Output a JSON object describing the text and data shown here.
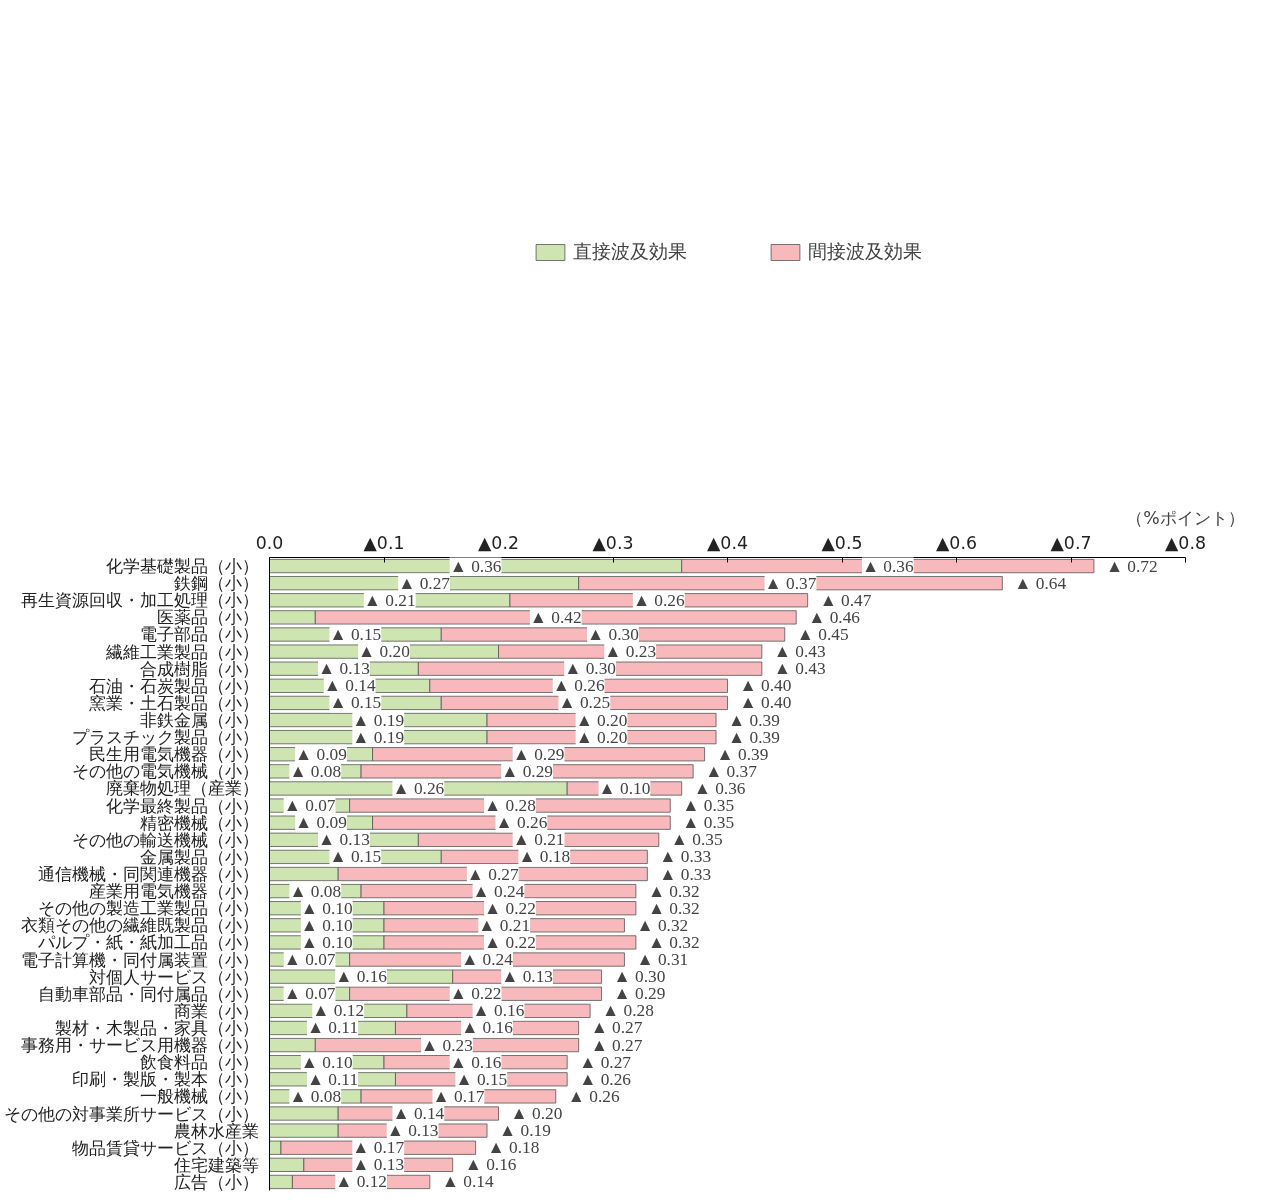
{
  "chart_data": {
    "type": "bar",
    "orientation": "horizontal",
    "stacked": true,
    "xlabel": "（%ポイント）",
    "legend": "top",
    "categories": [
      "化学基礎製品（小）",
      "鉄鋼（小）",
      "再生資源回収・加工処理（小）",
      "医薬品（小）",
      "電子部品（小）",
      "繊維工業製品（小）",
      "合成樹脂（小）",
      "石油・石炭製品（小）",
      "窯業・土石製品（小）",
      "非鉄金属（小）",
      "プラスチック製品（小）",
      "民生用電気機器（小）",
      "その他の電気機械（小）",
      "廃棄物処理（産業）",
      "化学最終製品（小）",
      "精密機械（小）",
      "その他の輸送機械（小）",
      "金属製品（小）",
      "通信機械・同関連機器（小）",
      "産業用電気機器（小）",
      "その他の製造工業製品（小）",
      "衣類その他の繊維既製品（小）",
      "パルプ・紙・紙加工品（小）",
      "電子計算機・同付属装置（小）",
      "対個人サービス（小）",
      "自動車部品・同付属品（小）",
      "商業（小）",
      "製材・木製品・家具（小）",
      "事務用・サービス用機器（小）",
      "飲食料品（小）",
      "印刷・製版・製本（小）",
      "一般機械（小）",
      "その他の対事業所サービス（小）",
      "農林水産業",
      "物品賃貸サービス（小）",
      "住宅建築等",
      "広告（小）"
    ],
    "xlim": [
      0,
      0.8
    ],
    "xticks": [
      {
        "value": 0,
        "label": "0.0"
      },
      {
        "value": 0.1,
        "label": "▲0.1"
      },
      {
        "value": 0.2,
        "label": "▲0.2"
      },
      {
        "value": 0.3,
        "label": "▲0.3"
      },
      {
        "value": 0.4,
        "label": "▲0.4"
      },
      {
        "value": 0.5,
        "label": "▲0.5"
      },
      {
        "value": 0.6,
        "label": "▲0.6"
      },
      {
        "value": 0.7,
        "label": "▲0.7"
      },
      {
        "value": 0.8,
        "label": "▲0.8"
      }
    ],
    "series": [
      {
        "name": "直接波及効果",
        "color": "#cfe5b1",
        "values": [
          0.36,
          0.27,
          0.21,
          0.04,
          0.15,
          0.2,
          0.13,
          0.14,
          0.15,
          0.19,
          0.19,
          0.09,
          0.08,
          0.26,
          0.07,
          0.09,
          0.13,
          0.15,
          0.06,
          0.08,
          0.1,
          0.1,
          0.1,
          0.07,
          0.16,
          0.07,
          0.12,
          0.11,
          0.04,
          0.1,
          0.11,
          0.08,
          0.06,
          0.06,
          0.01,
          0.03,
          0.02
        ],
        "value_labels": [
          "▲ 0.36",
          "▲ 0.27",
          "▲ 0.21",
          null,
          "▲ 0.15",
          "▲ 0.20",
          "▲ 0.13",
          "▲ 0.14",
          "▲ 0.15",
          "▲ 0.19",
          "▲ 0.19",
          "▲ 0.09",
          "▲ 0.08",
          "▲ 0.26",
          "▲ 0.07",
          "▲ 0.09",
          "▲ 0.13",
          "▲ 0.15",
          null,
          "▲ 0.08",
          "▲ 0.10",
          "▲ 0.10",
          "▲ 0.10",
          "▲ 0.07",
          "▲ 0.16",
          "▲ 0.07",
          "▲ 0.12",
          "▲ 0.11",
          null,
          "▲ 0.10",
          "▲ 0.11",
          "▲ 0.08",
          null,
          null,
          null,
          null,
          null
        ]
      },
      {
        "name": "間接波及効果",
        "color": "#f7b9bb",
        "values": [
          0.36,
          0.37,
          0.26,
          0.42,
          0.3,
          0.23,
          0.3,
          0.26,
          0.25,
          0.2,
          0.2,
          0.29,
          0.29,
          0.1,
          0.28,
          0.26,
          0.21,
          0.18,
          0.27,
          0.24,
          0.22,
          0.21,
          0.22,
          0.24,
          0.13,
          0.22,
          0.16,
          0.16,
          0.23,
          0.16,
          0.15,
          0.17,
          0.14,
          0.13,
          0.17,
          0.13,
          0.12
        ],
        "value_labels": [
          "▲ 0.36",
          "▲ 0.37",
          "▲ 0.26",
          "▲ 0.42",
          "▲ 0.30",
          "▲ 0.23",
          "▲ 0.30",
          "▲ 0.26",
          "▲ 0.25",
          "▲ 0.20",
          "▲ 0.20",
          "▲ 0.29",
          "▲ 0.29",
          "▲ 0.10",
          "▲ 0.28",
          "▲ 0.26",
          "▲ 0.21",
          "▲ 0.18",
          "▲ 0.27",
          "▲ 0.24",
          "▲ 0.22",
          "▲ 0.21",
          "▲ 0.22",
          "▲ 0.24",
          "▲ 0.13",
          "▲ 0.22",
          "▲ 0.16",
          "▲ 0.16",
          "▲ 0.23",
          "▲ 0.16",
          "▲ 0.15",
          "▲ 0.17",
          "▲ 0.14",
          "▲ 0.13",
          "▲ 0.17",
          "▲ 0.13",
          "▲ 0.12"
        ]
      }
    ],
    "totals": [
      "▲ 0.72",
      "▲ 0.64",
      "▲ 0.47",
      "▲ 0.46",
      "▲ 0.45",
      "▲ 0.43",
      "▲ 0.43",
      "▲ 0.40",
      "▲ 0.40",
      "▲ 0.39",
      "▲ 0.39",
      "▲ 0.39",
      "▲ 0.37",
      "▲ 0.36",
      "▲ 0.35",
      "▲ 0.35",
      "▲ 0.35",
      "▲ 0.33",
      "▲ 0.33",
      "▲ 0.32",
      "▲ 0.32",
      "▲ 0.32",
      "▲ 0.32",
      "▲ 0.31",
      "▲ 0.30",
      "▲ 0.29",
      "▲ 0.28",
      "▲ 0.27",
      "▲ 0.27",
      "▲ 0.27",
      "▲ 0.26",
      "▲ 0.26",
      "▲ 0.20",
      "▲ 0.19",
      "▲ 0.18",
      "▲ 0.16",
      "▲ 0.14"
    ]
  }
}
